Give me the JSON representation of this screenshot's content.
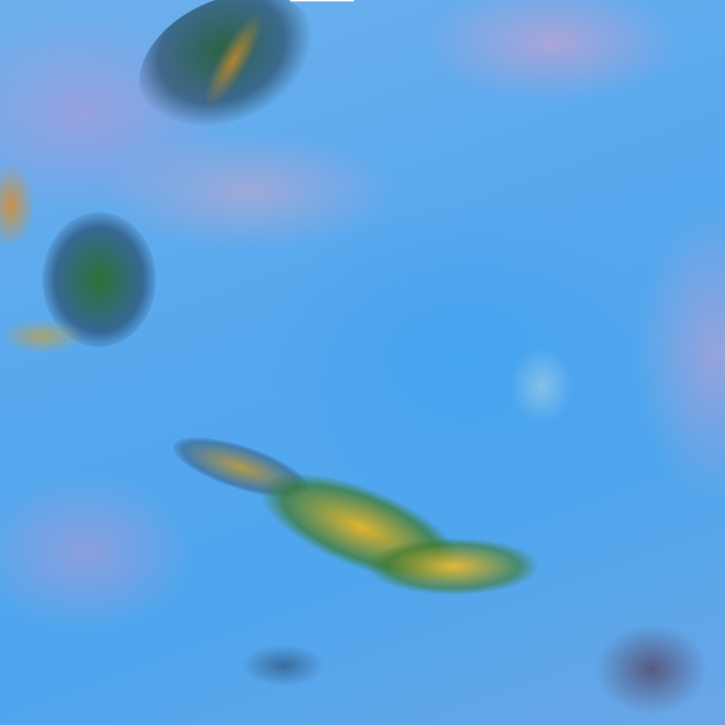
{
  "image": {
    "kind": "false-color-satellite",
    "colors": {
      "background": "#4aa3ea",
      "cloud_pink": "#d8a0c8",
      "vegetation_green": "#2e6a2a",
      "hot_yellow": "#e0b030",
      "dark": "#1a3050"
    }
  }
}
